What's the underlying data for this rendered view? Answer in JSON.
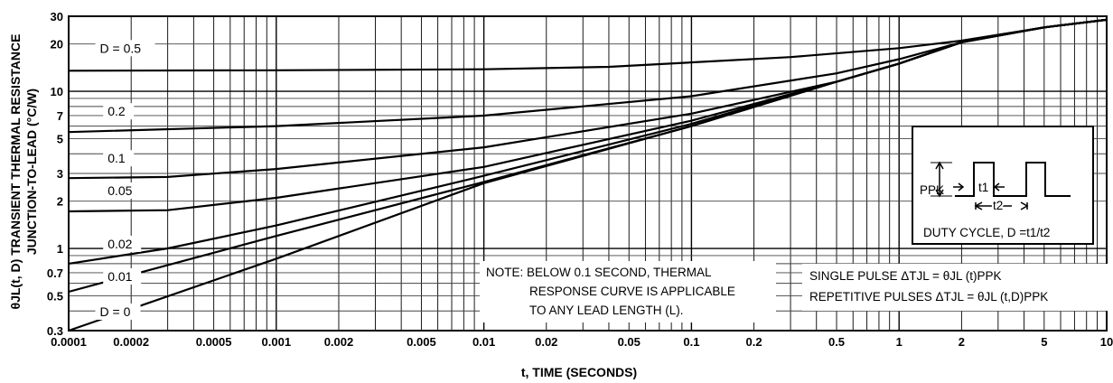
{
  "chart_data": {
    "type": "line",
    "xscale": "log",
    "yscale": "log",
    "xlim": [
      0.0001,
      10
    ],
    "ylim": [
      0.3,
      30
    ],
    "grid": true,
    "xlabel": "t, TIME (SECONDS)",
    "ylabel_line1": "θJL(t, D) TRANSIENT THERMAL RESISTANCE",
    "ylabel_line2": "JUNCTION-TO-LEAD (°C/W)",
    "x_ticks": [
      {
        "v": 0.0001,
        "label": "0.0001"
      },
      {
        "v": 0.0002,
        "label": "0.0002"
      },
      {
        "v": 0.0005,
        "label": "0.0005"
      },
      {
        "v": 0.001,
        "label": "0.001"
      },
      {
        "v": 0.002,
        "label": "0.002"
      },
      {
        "v": 0.005,
        "label": "0.005"
      },
      {
        "v": 0.01,
        "label": "0.01"
      },
      {
        "v": 0.02,
        "label": "0.02"
      },
      {
        "v": 0.05,
        "label": "0.05"
      },
      {
        "v": 0.1,
        "label": "0.1"
      },
      {
        "v": 0.2,
        "label": "0.2"
      },
      {
        "v": 0.5,
        "label": "0.5"
      },
      {
        "v": 1,
        "label": "1"
      },
      {
        "v": 2,
        "label": "2"
      },
      {
        "v": 5,
        "label": "5"
      },
      {
        "v": 10,
        "label": "10"
      }
    ],
    "y_ticks": [
      {
        "v": 0.3,
        "label": "0.3"
      },
      {
        "v": 0.5,
        "label": "0.5"
      },
      {
        "v": 0.7,
        "label": "0.7"
      },
      {
        "v": 1,
        "label": "1"
      },
      {
        "v": 2,
        "label": "2"
      },
      {
        "v": 3,
        "label": "3"
      },
      {
        "v": 5,
        "label": "5"
      },
      {
        "v": 7,
        "label": "7"
      },
      {
        "v": 10,
        "label": "10"
      },
      {
        "v": 20,
        "label": "20"
      },
      {
        "v": 30,
        "label": "30"
      }
    ],
    "series": [
      {
        "name": "D = 0.5",
        "label_at": 0.00011,
        "points": [
          [
            0.0001,
            13.5
          ],
          [
            0.001,
            13.6
          ],
          [
            0.01,
            13.8
          ],
          [
            0.04,
            14.3
          ],
          [
            0.3,
            16.5
          ],
          [
            1,
            18.8
          ],
          [
            2,
            21
          ],
          [
            5,
            25.5
          ],
          [
            10,
            28.5
          ]
        ]
      },
      {
        "name": "0.2",
        "label_at": 0.00012,
        "points": [
          [
            0.0001,
            5.5
          ],
          [
            0.001,
            6.0
          ],
          [
            0.01,
            7.0
          ],
          [
            0.1,
            9.3
          ],
          [
            0.5,
            13
          ],
          [
            1,
            16
          ],
          [
            2,
            20.5
          ],
          [
            5,
            25.5
          ],
          [
            10,
            28.5
          ]
        ]
      },
      {
        "name": "0.1",
        "label_at": 0.00012,
        "points": [
          [
            0.0001,
            2.8
          ],
          [
            0.0003,
            2.85
          ],
          [
            0.001,
            3.2
          ],
          [
            0.01,
            4.4
          ],
          [
            0.1,
            7.2
          ],
          [
            0.5,
            11.5
          ],
          [
            1,
            15
          ],
          [
            2,
            20.5
          ],
          [
            5,
            25.5
          ],
          [
            10,
            28.5
          ]
        ]
      },
      {
        "name": "0.05",
        "label_at": 0.00012,
        "points": [
          [
            0.0001,
            1.72
          ],
          [
            0.0003,
            1.75
          ],
          [
            0.001,
            2.1
          ],
          [
            0.01,
            3.3
          ],
          [
            0.1,
            6.5
          ],
          [
            0.5,
            11.5
          ],
          [
            1,
            15
          ],
          [
            2,
            20.5
          ],
          [
            5,
            25.5
          ],
          [
            10,
            28.5
          ]
        ]
      },
      {
        "name": "0.02",
        "label_at": 0.00012,
        "points": [
          [
            0.0001,
            0.8
          ],
          [
            0.0003,
            1.0
          ],
          [
            0.001,
            1.4
          ],
          [
            0.01,
            2.9
          ],
          [
            0.1,
            6.2
          ],
          [
            0.5,
            11.5
          ],
          [
            1,
            15
          ],
          [
            2,
            20.5
          ],
          [
            5,
            25.5
          ],
          [
            10,
            28.5
          ]
        ]
      },
      {
        "name": "0.01",
        "label_at": 0.00012,
        "points": [
          [
            0.0001,
            0.53
          ],
          [
            0.001,
            1.2
          ],
          [
            0.01,
            2.65
          ],
          [
            0.1,
            6.0
          ],
          [
            0.5,
            11.5
          ],
          [
            1,
            15
          ],
          [
            2,
            20.5
          ],
          [
            5,
            25.5
          ],
          [
            10,
            28.5
          ]
        ]
      },
      {
        "name": "D = 0",
        "label_at": 0.00011,
        "points": [
          [
            0.0001,
            0.3
          ],
          [
            0.001,
            0.86
          ],
          [
            0.01,
            2.6
          ],
          [
            0.1,
            6.0
          ],
          [
            0.5,
            11.5
          ],
          [
            1,
            15
          ],
          [
            2,
            20.5
          ],
          [
            5,
            25.5
          ],
          [
            10,
            28.5
          ]
        ]
      }
    ],
    "label_offsets_y": {
      "D = 0.5": 20,
      "0.2": 18,
      "0.1": 17,
      "0.05": 18,
      "0.02": 17,
      "0.01": 12,
      "D = 0": 16
    },
    "note_lines": [
      "NOTE: BELOW 0.1 SECOND, THERMAL",
      "RESPONSE CURVE IS APPLICABLE",
      "TO ANY LEAD LENGTH (L)."
    ],
    "single_pulse": "SINGLE PULSE ΔTJL = θJL (t)PPK",
    "repetitive_pulses": "REPETITIVE PULSES ΔTJL = θJL (t,D)PPK",
    "inset": {
      "ppk_label": "PPK",
      "t1_label": "t1",
      "t2_label": "t2",
      "duty_cycle": "DUTY CYCLE, D =t1/t2"
    }
  }
}
